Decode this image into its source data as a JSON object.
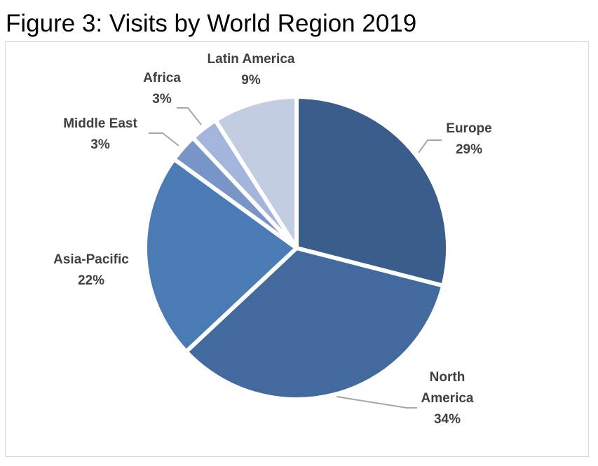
{
  "figure_title": "Figure 3: Visits by World Region 2019",
  "chart_data": {
    "type": "pie",
    "title": "",
    "slices": [
      {
        "name": "Europe",
        "value": 29,
        "label": "29%",
        "color": "#3a5d8c"
      },
      {
        "name": "North America",
        "value": 34,
        "label": "34%",
        "color": "#426a9e"
      },
      {
        "name": "Asia-Pacific",
        "value": 22,
        "label": "22%",
        "color": "#4a7bb5"
      },
      {
        "name": "Middle East",
        "value": 3,
        "label": "3%",
        "color": "#7995c8"
      },
      {
        "name": "Africa",
        "value": 3,
        "label": "3%",
        "color": "#a3b5da"
      },
      {
        "name": "Latin America",
        "value": 9,
        "label": "9%",
        "color": "#c2cde2"
      }
    ],
    "start_angle": "12 o'clock",
    "direction": "clockwise",
    "legend": "none"
  }
}
